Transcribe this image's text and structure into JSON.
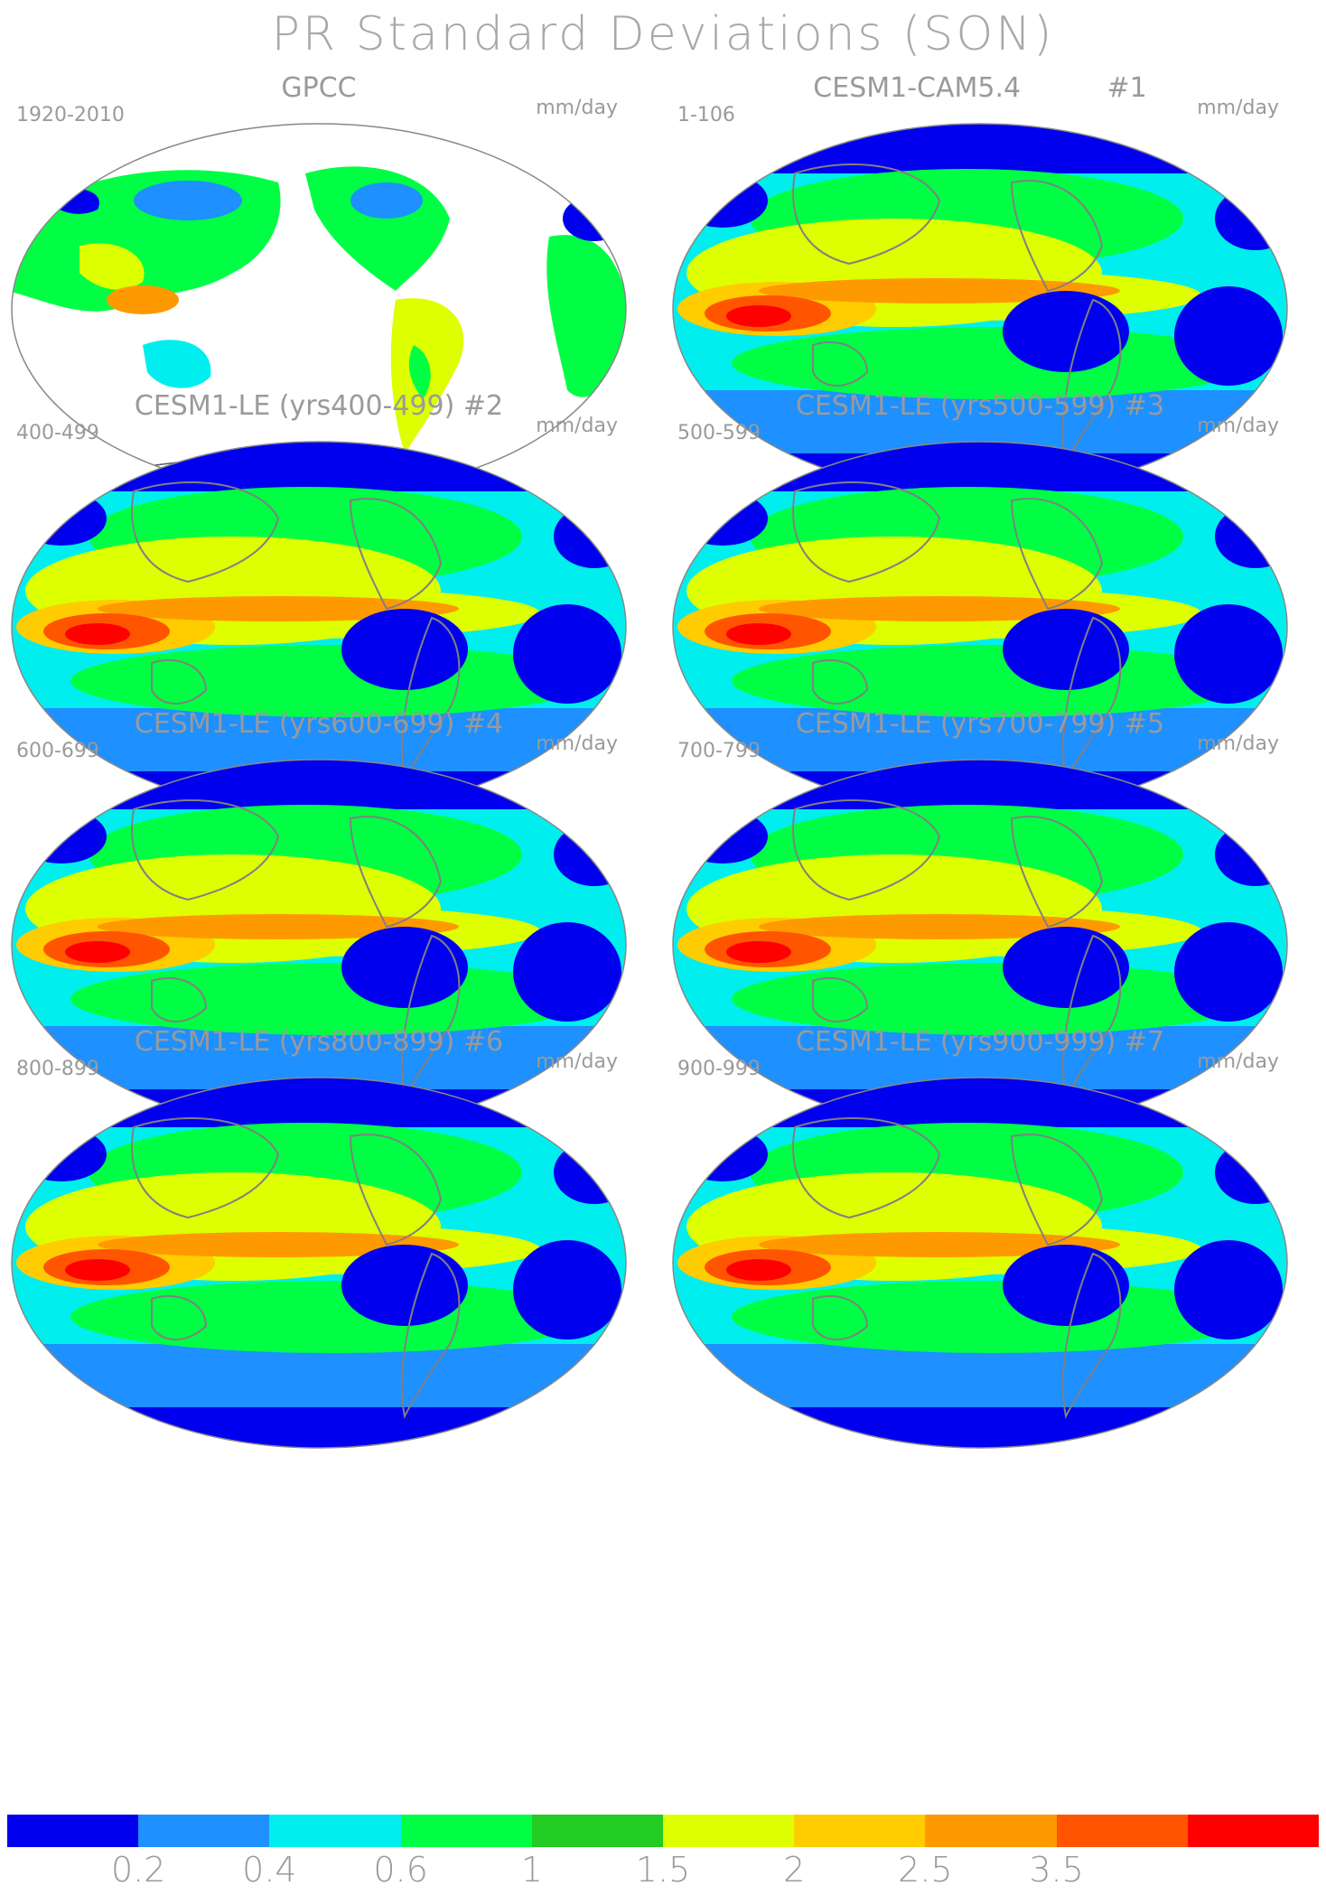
{
  "title": "PR Standard Deviations (SON)",
  "units": "mm/day",
  "panels": [
    {
      "title": "GPCC",
      "period": "1920-2010",
      "kind": "obs"
    },
    {
      "title": "CESM1-CAM5.4          #1",
      "period": "1-106",
      "kind": "model"
    },
    {
      "title": "CESM1-LE (yrs400-499) #2",
      "period": "400-499",
      "kind": "model"
    },
    {
      "title": "CESM1-LE (yrs500-599) #3",
      "period": "500-599",
      "kind": "model"
    },
    {
      "title": "CESM1-LE (yrs600-699) #4",
      "period": "600-699",
      "kind": "model"
    },
    {
      "title": "CESM1-LE (yrs700-799) #5",
      "period": "700-799",
      "kind": "model"
    },
    {
      "title": "CESM1-LE (yrs800-899) #6",
      "period": "800-899",
      "kind": "model"
    },
    {
      "title": "CESM1-LE (yrs900-999) #7",
      "period": "900-999",
      "kind": "model"
    }
  ],
  "colorbar": {
    "colors": [
      "#0000ee",
      "#1e90ff",
      "#00eeee",
      "#00ff44",
      "#22cc22",
      "#ddff00",
      "#ffcc00",
      "#ff9900",
      "#ff5500",
      "#ff0000"
    ],
    "labels": [
      "0.2",
      "0.4",
      "0.6",
      "1",
      "1.5",
      "2",
      "2.5",
      "3.5"
    ]
  }
}
